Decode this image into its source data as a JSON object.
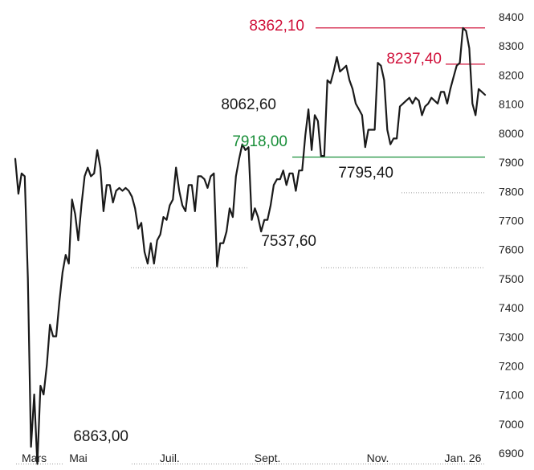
{
  "chart_data": {
    "type": "line",
    "title": "",
    "xlabel": "",
    "ylabel": "",
    "ylim": [
      6850,
      8430
    ],
    "y_ticks": [
      6900,
      7000,
      7100,
      7200,
      7300,
      7400,
      7500,
      7600,
      7700,
      7800,
      7900,
      8000,
      8100,
      8200,
      8300,
      8400
    ],
    "x_ticks": [
      "Mars",
      "Mai",
      "Juil.",
      "Sept.",
      "Nov.",
      "Jan. 26"
    ],
    "grid": false,
    "colors": {
      "line": "#1a1a1a",
      "high": "#d0103a",
      "support": "#1a8f3a",
      "guide": "#999999"
    },
    "series": [
      {
        "points": [
          [
            0,
            7912
          ],
          [
            1,
            7792
          ],
          [
            2,
            7862
          ],
          [
            3,
            7852
          ],
          [
            4,
            7502
          ],
          [
            5,
            6922
          ],
          [
            6,
            7102
          ],
          [
            7,
            6863
          ],
          [
            8,
            7132
          ],
          [
            9,
            7102
          ],
          [
            10,
            7202
          ],
          [
            11,
            7342
          ],
          [
            12,
            7302
          ],
          [
            13,
            7302
          ],
          [
            14,
            7422
          ],
          [
            15,
            7522
          ],
          [
            16,
            7582
          ],
          [
            17,
            7552
          ],
          [
            18,
            7772
          ],
          [
            19,
            7722
          ],
          [
            20,
            7632
          ],
          [
            21,
            7752
          ],
          [
            22,
            7852
          ],
          [
            23,
            7882
          ],
          [
            24,
            7852
          ],
          [
            25,
            7862
          ],
          [
            26,
            7942
          ],
          [
            27,
            7882
          ],
          [
            28,
            7732
          ],
          [
            29,
            7822
          ],
          [
            30,
            7822
          ],
          [
            31,
            7762
          ],
          [
            32,
            7802
          ],
          [
            33,
            7812
          ],
          [
            34,
            7802
          ],
          [
            35,
            7812
          ],
          [
            36,
            7802
          ],
          [
            37,
            7782
          ],
          [
            38,
            7742
          ],
          [
            39,
            7672
          ],
          [
            40,
            7692
          ],
          [
            41,
            7592
          ],
          [
            42,
            7552
          ],
          [
            43,
            7622
          ],
          [
            44,
            7552
          ],
          [
            45,
            7632
          ],
          [
            46,
            7652
          ],
          [
            47,
            7712
          ],
          [
            48,
            7702
          ],
          [
            49,
            7752
          ],
          [
            50,
            7772
          ],
          [
            51,
            7882
          ],
          [
            52,
            7802
          ],
          [
            53,
            7752
          ],
          [
            54,
            7732
          ],
          [
            55,
            7822
          ],
          [
            56,
            7822
          ],
          [
            57,
            7732
          ],
          [
            58,
            7852
          ],
          [
            59,
            7852
          ],
          [
            60,
            7842
          ],
          [
            61,
            7812
          ],
          [
            62,
            7852
          ],
          [
            63,
            7862
          ],
          [
            64,
            7542
          ],
          [
            65,
            7622
          ],
          [
            66,
            7622
          ],
          [
            67,
            7662
          ],
          [
            68,
            7742
          ],
          [
            69,
            7712
          ],
          [
            70,
            7852
          ],
          [
            71,
            7912
          ],
          [
            72,
            7962
          ],
          [
            73,
            7942
          ],
          [
            74,
            7952
          ],
          [
            75,
            7702
          ],
          [
            76,
            7742
          ],
          [
            77,
            7712
          ],
          [
            78,
            7662
          ],
          [
            79,
            7702
          ],
          [
            80,
            7702
          ],
          [
            81,
            7752
          ],
          [
            82,
            7822
          ],
          [
            83,
            7842
          ],
          [
            84,
            7842
          ],
          [
            85,
            7872
          ],
          [
            86,
            7822
          ],
          [
            87,
            7862
          ],
          [
            88,
            7862
          ],
          [
            89,
            7802
          ],
          [
            90,
            7872
          ],
          [
            91,
            7872
          ],
          [
            92,
            7992
          ],
          [
            93,
            8082
          ],
          [
            94,
            7942
          ],
          [
            95,
            8062
          ],
          [
            96,
            8042
          ],
          [
            97,
            7922
          ],
          [
            98,
            7922
          ],
          [
            99,
            8182
          ],
          [
            100,
            8172
          ],
          [
            101,
            8212
          ],
          [
            102,
            8262
          ],
          [
            103,
            8212
          ],
          [
            104,
            8222
          ],
          [
            105,
            8232
          ],
          [
            106,
            8182
          ],
          [
            107,
            8152
          ],
          [
            108,
            8102
          ],
          [
            109,
            8082
          ],
          [
            110,
            8062
          ],
          [
            111,
            7952
          ],
          [
            112,
            8012
          ],
          [
            113,
            8012
          ],
          [
            114,
            8012
          ],
          [
            115,
            8242
          ],
          [
            116,
            8232
          ],
          [
            117,
            8182
          ],
          [
            118,
            8012
          ],
          [
            119,
            7962
          ],
          [
            120,
            7982
          ],
          [
            121,
            7982
          ],
          [
            122,
            8092
          ],
          [
            123,
            8102
          ],
          [
            124,
            8112
          ],
          [
            125,
            8122
          ],
          [
            126,
            8102
          ],
          [
            127,
            8122
          ],
          [
            128,
            8112
          ],
          [
            129,
            8062
          ],
          [
            130,
            8092
          ],
          [
            131,
            8102
          ],
          [
            132,
            8122
          ],
          [
            133,
            8112
          ],
          [
            134,
            8102
          ],
          [
            135,
            8142
          ],
          [
            136,
            8142
          ],
          [
            137,
            8102
          ],
          [
            138,
            8152
          ],
          [
            139,
            8192
          ],
          [
            140,
            8232
          ],
          [
            141,
            8242
          ],
          [
            142,
            8362
          ],
          [
            143,
            8352
          ],
          [
            144,
            8292
          ],
          [
            145,
            8102
          ],
          [
            146,
            8062
          ],
          [
            147,
            8152
          ],
          [
            148,
            8142
          ],
          [
            149,
            8132
          ]
        ]
      }
    ],
    "x_tick_positions": [
      {
        "label": "Mars",
        "i": 6
      },
      {
        "label": "Mai",
        "i": 20
      },
      {
        "label": "Juil.",
        "i": 49
      },
      {
        "label": "Sept.",
        "i": 80
      },
      {
        "label": "Nov.",
        "i": 115
      },
      {
        "label": "Jan. 26",
        "i": 142
      }
    ],
    "annotations": [
      {
        "text": "8362,10",
        "y": 8362.1,
        "color": "high"
      },
      {
        "text": "8237,40",
        "y": 8237.4,
        "color": "high"
      },
      {
        "text": "8062,60",
        "y": 8062.6,
        "color": "line"
      },
      {
        "text": "7918,00",
        "y": 7918.0,
        "color": "support"
      },
      {
        "text": "7795,40",
        "y": 7795.4,
        "color": "line"
      },
      {
        "text": "7537,60",
        "y": 7537.6,
        "color": "line"
      },
      {
        "text": "6863,00",
        "y": 6863.0,
        "color": "line"
      }
    ]
  }
}
